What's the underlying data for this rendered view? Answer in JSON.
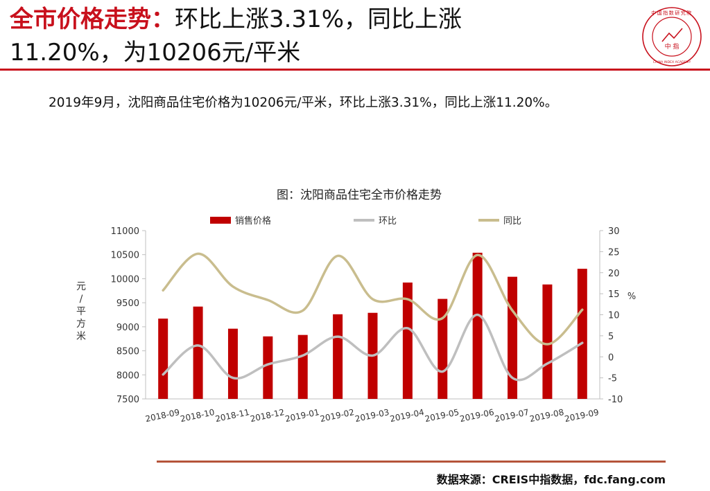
{
  "header": {
    "title_highlight": "全市价格走势：",
    "title_line1_rest": "环比上涨3.31%，同比上涨",
    "title_line2": "11.20%，为10206元/平米"
  },
  "logo": {
    "center_text": "中 指",
    "arc_text": "中国指数研究院",
    "english": "CHINA INDEX ACADEMY",
    "color": "#c8101c"
  },
  "summary": "2019年9月，沈阳商品住宅价格为10206元/平米，环比上涨3.31%，同比上涨11.20%。",
  "footer": {
    "source": "数据来源：CREIS中指数据，fdc.fang.com"
  },
  "chart_data": {
    "type": "bar",
    "title": "图：沈阳商品住宅全市价格走势",
    "categories": [
      "2018-09",
      "2018-10",
      "2018-11",
      "2018-12",
      "2019-01",
      "2019-02",
      "2019-03",
      "2019-04",
      "2019-05",
      "2019-06",
      "2019-07",
      "2019-08",
      "2019-09"
    ],
    "ylabel_left": "元/平方米",
    "ylabel_right": "%",
    "ylim_left": [
      7500,
      11000
    ],
    "yticks_left": [
      7500,
      8000,
      8500,
      9000,
      9500,
      10000,
      10500,
      11000
    ],
    "ylim_right": [
      -10,
      30
    ],
    "yticks_right": [
      -10,
      -5,
      0,
      5,
      10,
      15,
      20,
      25,
      30
    ],
    "legend_position": "top",
    "grid": false,
    "series": [
      {
        "name": "销售价格",
        "type": "bar",
        "axis": "left",
        "color": "#c00000",
        "values": [
          9170,
          9420,
          8960,
          8800,
          8830,
          9260,
          9290,
          9920,
          9580,
          10540,
          10040,
          9880,
          10206
        ]
      },
      {
        "name": "环比",
        "type": "line",
        "axis": "right",
        "color": "#bfbfbf",
        "values": [
          -4.2,
          2.7,
          -5.0,
          -1.8,
          0.3,
          4.8,
          0.3,
          6.8,
          -3.5,
          10.0,
          -5.0,
          -1.6,
          3.31
        ]
      },
      {
        "name": "同比",
        "type": "line",
        "axis": "right",
        "color": "#c9bd8e",
        "values": [
          15.8,
          24.5,
          16.7,
          13.5,
          11.0,
          24.0,
          13.7,
          13.7,
          9.2,
          24.2,
          11.0,
          3.0,
          11.2
        ]
      }
    ]
  }
}
